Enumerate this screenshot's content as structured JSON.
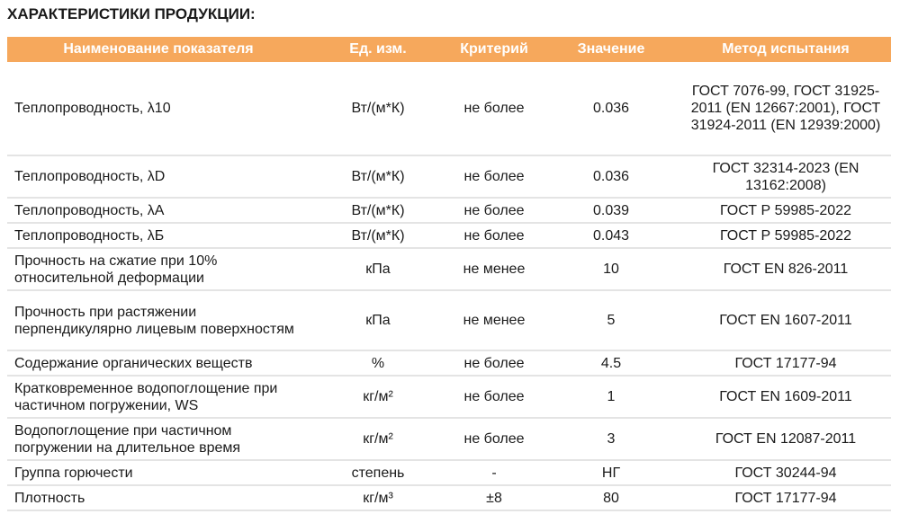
{
  "title": "ХАРАКТЕРИСТИКИ ПРОДУКЦИИ:",
  "table": {
    "headers": [
      "Наименование показателя",
      "Ед. изм.",
      "Критерий",
      "Значение",
      "Метод испытания"
    ],
    "rows": [
      {
        "name": "Теплопроводность, λ10",
        "unit": "Вт/(м*К)",
        "criterion": "не более",
        "value": "0.036",
        "method": "ГОСТ 7076-99, ГОСТ 31925-2011 (EN 12667:2001), ГОСТ 31924-2011 (EN 12939:2000)"
      },
      {
        "name": "Теплопроводность, λD",
        "unit": "Вт/(м*К)",
        "criterion": "не более",
        "value": "0.036",
        "method": "ГОСТ 32314-2023 (EN 13162:2008)"
      },
      {
        "name": "Теплопроводность, λА",
        "unit": "Вт/(м*К)",
        "criterion": "не более",
        "value": "0.039",
        "method": "ГОСТ Р 59985-2022"
      },
      {
        "name": "Теплопроводность, λБ",
        "unit": "Вт/(м*К)",
        "criterion": "не более",
        "value": "0.043",
        "method": "ГОСТ Р 59985-2022"
      },
      {
        "name": "Прочность на сжатие при 10% относительной деформации",
        "unit": "кПа",
        "criterion": "не менее",
        "value": "10",
        "method": "ГОСТ EN 826-2011"
      },
      {
        "name": "Прочность при растяжении перпендикулярно лицевым поверхностям",
        "unit": "кПа",
        "criterion": "не менее",
        "value": "5",
        "method": "ГОСТ EN 1607-2011"
      },
      {
        "name": "Содержание органических веществ",
        "unit": "%",
        "criterion": "не более",
        "value": "4.5",
        "method": "ГОСТ 17177-94"
      },
      {
        "name": "Кратковременное водопоглощение при частичном погружении, WS",
        "unit": "кг/м²",
        "criterion": "не более",
        "value": "1",
        "method": "ГОСТ EN 1609-2011"
      },
      {
        "name": "Водопоглощение при частичном погружении на длительное время",
        "unit": "кг/м²",
        "criterion": "не более",
        "value": "3",
        "method": "ГОСТ EN 12087-2011"
      },
      {
        "name": "Группа горючести",
        "unit": "степень",
        "criterion": "-",
        "value": "НГ",
        "method": "ГОСТ 30244-94"
      },
      {
        "name": "Плотность",
        "unit": "кг/м³",
        "criterion": "±8",
        "value": "80",
        "method": "ГОСТ 17177-94"
      }
    ]
  },
  "colors": {
    "header_bg": "#f6a85c",
    "header_text": "#ffffff",
    "row_separator": "#e4e4e4"
  }
}
